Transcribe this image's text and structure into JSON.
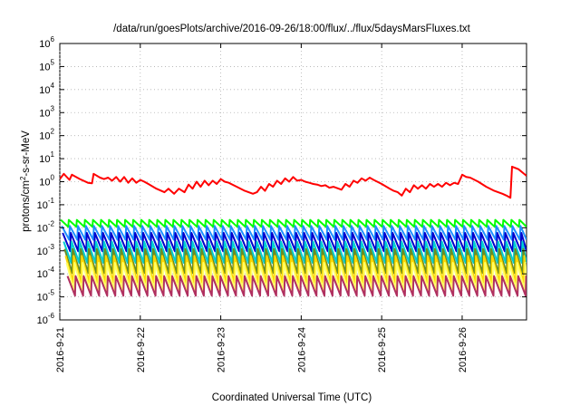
{
  "chart_data": {
    "type": "line",
    "title": "/data/run/goesPlots/archive/2016-09-26/18:00/flux/../flux/5daysMarsFluxes.txt",
    "xlabel": "Coordinated Universal Time (UTC)",
    "ylabel_main": "protons/cm",
    "ylabel_sup": "2",
    "ylabel_rest": "-s-sr-MeV",
    "ylim": [
      1e-06,
      1000000.0
    ],
    "yscale": "log",
    "xlim": [
      0,
      5.8
    ],
    "grid": true,
    "y_ticks": [
      {
        "exp": -6,
        "base": "10",
        "sup": "-6"
      },
      {
        "exp": -5,
        "base": "10",
        "sup": "-5"
      },
      {
        "exp": -4,
        "base": "10",
        "sup": "-4"
      },
      {
        "exp": -3,
        "base": "10",
        "sup": "-3"
      },
      {
        "exp": -2,
        "base": "10",
        "sup": "-2"
      },
      {
        "exp": -1,
        "base": "10",
        "sup": "-1"
      },
      {
        "exp": 0,
        "base": "10",
        "sup": "0"
      },
      {
        "exp": 1,
        "base": "10",
        "sup": "1"
      },
      {
        "exp": 2,
        "base": "10",
        "sup": "2"
      },
      {
        "exp": 3,
        "base": "10",
        "sup": "3"
      },
      {
        "exp": 4,
        "base": "10",
        "sup": "4"
      },
      {
        "exp": 5,
        "base": "10",
        "sup": "5"
      },
      {
        "exp": 6,
        "base": "10",
        "sup": "6"
      }
    ],
    "x_ticks": [
      {
        "x": 0,
        "label": "2016-9-21"
      },
      {
        "x": 1,
        "label": "2016-9-22"
      },
      {
        "x": 2,
        "label": "2016-9-23"
      },
      {
        "x": 3,
        "label": "2016-9-24"
      },
      {
        "x": 4,
        "label": "2016-9-25"
      },
      {
        "x": 5,
        "label": "2016-9-26"
      }
    ],
    "x_unit": "days since 2016-9-21 00:00 UTC",
    "series": [
      {
        "color": "#ff0000",
        "points": [
          [
            0,
            1.3
          ],
          [
            0.05,
            2.2
          ],
          [
            0.12,
            1.2
          ],
          [
            0.15,
            2.0
          ],
          [
            0.25,
            1.3
          ],
          [
            0.35,
            0.9
          ],
          [
            0.4,
            0.85
          ],
          [
            0.42,
            2.2
          ],
          [
            0.5,
            1.5
          ],
          [
            0.55,
            1.3
          ],
          [
            0.6,
            1.5
          ],
          [
            0.65,
            1.1
          ],
          [
            0.7,
            1.6
          ],
          [
            0.75,
            1.0
          ],
          [
            0.8,
            1.6
          ],
          [
            0.85,
            0.9
          ],
          [
            0.9,
            1.4
          ],
          [
            0.95,
            0.9
          ],
          [
            1.0,
            1.2
          ],
          [
            1.05,
            1.0
          ],
          [
            1.1,
            0.8
          ],
          [
            1.2,
            0.5
          ],
          [
            1.3,
            0.35
          ],
          [
            1.35,
            0.5
          ],
          [
            1.42,
            0.3
          ],
          [
            1.48,
            0.5
          ],
          [
            1.55,
            0.35
          ],
          [
            1.6,
            0.75
          ],
          [
            1.65,
            0.5
          ],
          [
            1.7,
            1.0
          ],
          [
            1.75,
            0.6
          ],
          [
            1.8,
            1.1
          ],
          [
            1.85,
            0.7
          ],
          [
            1.9,
            1.1
          ],
          [
            1.95,
            0.8
          ],
          [
            2.0,
            1.3
          ],
          [
            2.05,
            1.0
          ],
          [
            2.1,
            0.9
          ],
          [
            2.2,
            0.6
          ],
          [
            2.3,
            0.4
          ],
          [
            2.4,
            0.3
          ],
          [
            2.45,
            0.35
          ],
          [
            2.5,
            0.6
          ],
          [
            2.55,
            0.4
          ],
          [
            2.6,
            0.8
          ],
          [
            2.65,
            0.6
          ],
          [
            2.7,
            1.1
          ],
          [
            2.75,
            0.8
          ],
          [
            2.8,
            1.4
          ],
          [
            2.85,
            1.0
          ],
          [
            2.9,
            1.6
          ],
          [
            2.95,
            1.1
          ],
          [
            3.0,
            1.2
          ],
          [
            3.05,
            1.0
          ],
          [
            3.1,
            0.9
          ],
          [
            3.15,
            0.8
          ],
          [
            3.2,
            0.75
          ],
          [
            3.25,
            0.65
          ],
          [
            3.3,
            0.7
          ],
          [
            3.35,
            0.55
          ],
          [
            3.4,
            0.6
          ],
          [
            3.5,
            0.45
          ],
          [
            3.55,
            0.8
          ],
          [
            3.6,
            0.6
          ],
          [
            3.65,
            1.1
          ],
          [
            3.7,
            0.9
          ],
          [
            3.75,
            1.4
          ],
          [
            3.8,
            1.1
          ],
          [
            3.85,
            1.5
          ],
          [
            3.9,
            1.2
          ],
          [
            4.0,
            0.8
          ],
          [
            4.1,
            0.5
          ],
          [
            4.15,
            0.4
          ],
          [
            4.2,
            0.35
          ],
          [
            4.25,
            0.25
          ],
          [
            4.3,
            0.5
          ],
          [
            4.35,
            0.35
          ],
          [
            4.4,
            0.7
          ],
          [
            4.45,
            0.5
          ],
          [
            4.5,
            0.7
          ],
          [
            4.55,
            0.5
          ],
          [
            4.6,
            0.8
          ],
          [
            4.65,
            0.6
          ],
          [
            4.7,
            0.8
          ],
          [
            4.75,
            0.6
          ],
          [
            4.8,
            0.9
          ],
          [
            4.85,
            0.7
          ],
          [
            4.9,
            0.9
          ],
          [
            4.95,
            0.8
          ],
          [
            5.0,
            2.0
          ],
          [
            5.05,
            1.6
          ],
          [
            5.1,
            1.5
          ],
          [
            5.2,
            1.0
          ],
          [
            5.3,
            0.6
          ],
          [
            5.4,
            0.4
          ],
          [
            5.5,
            0.3
          ],
          [
            5.55,
            0.25
          ],
          [
            5.6,
            0.2
          ],
          [
            5.62,
            4.5
          ],
          [
            5.7,
            3.5
          ],
          [
            5.8,
            1.8
          ]
        ]
      },
      {
        "color": "#00ff00",
        "base": 0.022,
        "ratio": 0.5
      },
      {
        "color": "#1e90ff",
        "base": 0.012,
        "ratio": 0.25
      },
      {
        "color": "#0000cd",
        "base": 0.006,
        "ratio": 0.16
      },
      {
        "color": "#00ced1",
        "base": 0.0025,
        "ratio": 0.12
      },
      {
        "color": "#6b8e23",
        "base": 0.0012,
        "ratio": 0.09
      },
      {
        "color": "#ffd700",
        "base": 0.0006,
        "ratio": 0.07
      },
      {
        "color": "#ffff66",
        "base": 0.0003,
        "ratio": 0.06
      },
      {
        "color": "#b03060",
        "base": 8e-05,
        "ratio": 0.14
      }
    ],
    "sawtooth_period": 0.1
  }
}
